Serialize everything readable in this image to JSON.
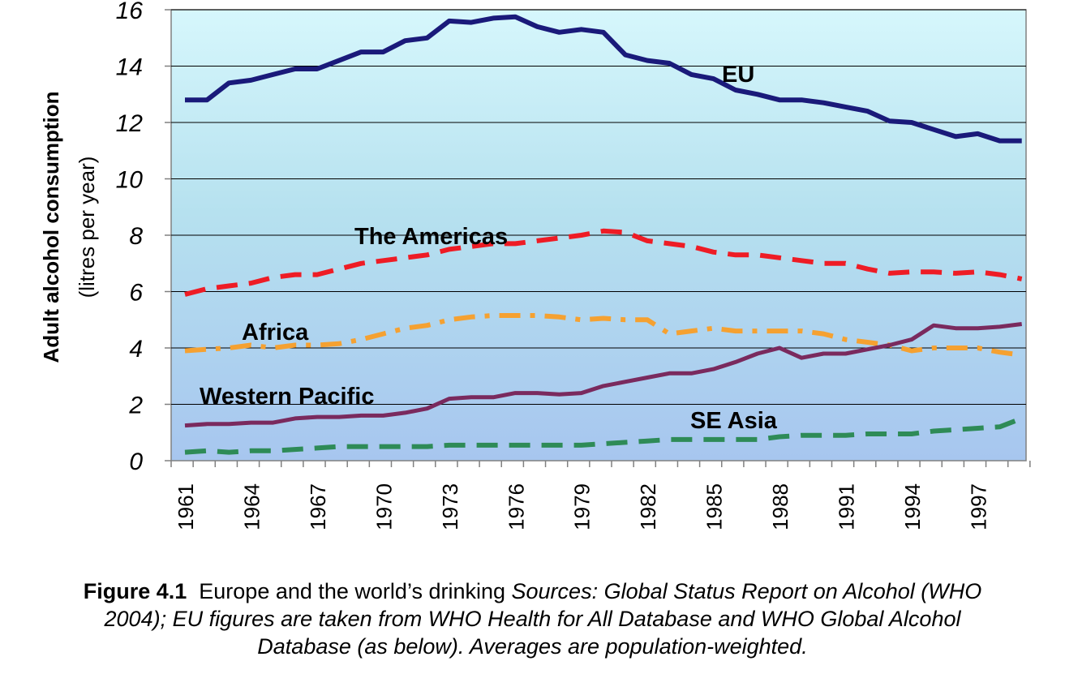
{
  "chart_data": {
    "type": "line",
    "ylabel": "Adult alcohol consumption",
    "ylabel_sub": "(litres per year)",
    "ylim": [
      0,
      16
    ],
    "yticks": [
      0,
      2,
      4,
      6,
      8,
      10,
      12,
      14,
      16
    ],
    "x_range": [
      1961,
      2000
    ],
    "xtick_labels": [
      "1961",
      "1964",
      "1967",
      "1970",
      "1973",
      "1976",
      "1979",
      "1982",
      "1985",
      "1988",
      "1991",
      "1994",
      "1997"
    ],
    "x": [
      1961,
      1962,
      1963,
      1964,
      1965,
      1966,
      1967,
      1968,
      1969,
      1970,
      1971,
      1972,
      1973,
      1974,
      1975,
      1976,
      1977,
      1978,
      1979,
      1980,
      1981,
      1982,
      1983,
      1984,
      1985,
      1986,
      1987,
      1988,
      1989,
      1990,
      1991,
      1992,
      1993,
      1994,
      1995,
      1996,
      1997,
      1998,
      1999
    ],
    "series": [
      {
        "name": "EU",
        "label": "EU",
        "color": "#1a1a7a",
        "dash": "solid",
        "values": [
          12.8,
          12.8,
          13.4,
          13.5,
          13.7,
          13.9,
          13.9,
          14.2,
          14.5,
          14.5,
          14.9,
          15.0,
          15.6,
          15.55,
          15.7,
          15.75,
          15.4,
          15.2,
          15.3,
          15.2,
          14.4,
          14.2,
          14.1,
          13.7,
          13.55,
          13.15,
          13.0,
          12.8,
          12.8,
          12.7,
          12.55,
          12.4,
          12.05,
          12.0,
          11.75,
          11.5,
          11.6,
          11.35,
          11.35
        ]
      },
      {
        "name": "The Americas",
        "label": "The Americas",
        "color": "#ee1c25",
        "dash": "dashed",
        "values": [
          5.9,
          6.1,
          6.2,
          6.3,
          6.5,
          6.6,
          6.6,
          6.8,
          7.0,
          7.1,
          7.2,
          7.3,
          7.5,
          7.6,
          7.7,
          7.7,
          7.8,
          7.9,
          8.0,
          8.15,
          8.1,
          7.8,
          7.7,
          7.6,
          7.4,
          7.3,
          7.3,
          7.2,
          7.1,
          7.0,
          7.0,
          6.8,
          6.65,
          6.7,
          6.7,
          6.65,
          6.7,
          6.6,
          6.45
        ]
      },
      {
        "name": "Africa",
        "label": "Africa",
        "color": "#f5a131",
        "dash": "dashdot",
        "values": [
          3.9,
          3.95,
          4.0,
          4.1,
          4.0,
          4.1,
          4.1,
          4.15,
          4.3,
          4.5,
          4.7,
          4.8,
          5.0,
          5.1,
          5.15,
          5.15,
          5.15,
          5.1,
          5.0,
          5.05,
          5.0,
          5.0,
          4.5,
          4.6,
          4.7,
          4.6,
          4.6,
          4.6,
          4.6,
          4.5,
          4.3,
          4.2,
          4.1,
          3.9,
          4.0,
          4.0,
          4.0,
          3.85,
          3.75
        ]
      },
      {
        "name": "Western Pacific",
        "label": "Western Pacific",
        "color": "#7a2a5e",
        "dash": "solid",
        "values": [
          1.25,
          1.3,
          1.3,
          1.35,
          1.35,
          1.5,
          1.55,
          1.55,
          1.6,
          1.6,
          1.7,
          1.85,
          2.2,
          2.25,
          2.25,
          2.4,
          2.4,
          2.35,
          2.4,
          2.65,
          2.8,
          2.95,
          3.1,
          3.1,
          3.25,
          3.5,
          3.8,
          4.0,
          3.65,
          3.8,
          3.8,
          3.95,
          4.1,
          4.3,
          4.8,
          4.7,
          4.7,
          4.75,
          4.85
        ]
      },
      {
        "name": "SE Asia",
        "label": "SE Asia",
        "color": "#2e8b57",
        "dash": "dashed",
        "values": [
          0.3,
          0.35,
          0.3,
          0.35,
          0.35,
          0.4,
          0.45,
          0.5,
          0.5,
          0.5,
          0.5,
          0.5,
          0.55,
          0.55,
          0.55,
          0.55,
          0.55,
          0.55,
          0.55,
          0.6,
          0.65,
          0.7,
          0.75,
          0.75,
          0.75,
          0.75,
          0.75,
          0.85,
          0.9,
          0.9,
          0.9,
          0.95,
          0.95,
          0.95,
          1.05,
          1.1,
          1.15,
          1.2,
          1.5
        ]
      }
    ]
  },
  "caption": {
    "figure_label": "Figure 4.1",
    "plain_text": "  Europe and the world’s drinking ",
    "italic_line1": "Sources: Global Status Report on Alcohol (WHO",
    "italic_line2": "2004); EU figures are taken from WHO Health for All Database and WHO Global Alcohol",
    "italic_line3": "Database (as below).  Averages are population-weighted."
  }
}
